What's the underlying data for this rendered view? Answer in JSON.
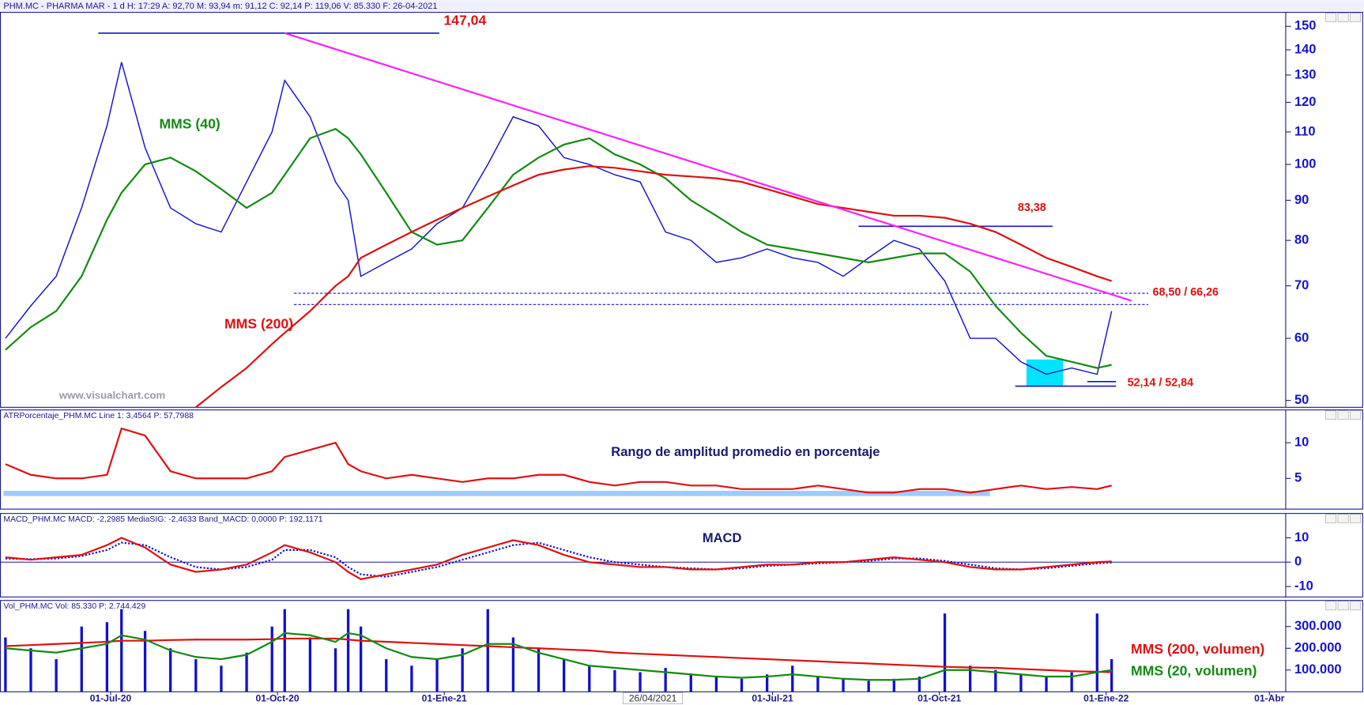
{
  "chart_data": {
    "type": "line",
    "title": "PHM.MC - PHARMA MAR -  1 d  H: 17:29  A: 92,70  M: 93,94  m: 91,12  C: 92,14  P: 119,06  V: 85.330  F: 26-04-2021",
    "watermark": "www.visualchart.com",
    "cursor": {
      "x": "2021-04-26",
      "label": "26/04/2021"
    },
    "xlim": [
      "2020-05-01",
      "2022-04-10"
    ],
    "xticks": [
      {
        "value": "2020-07-01",
        "label": "01-Jul-20"
      },
      {
        "value": "2020-10-01",
        "label": "01-Oct-20"
      },
      {
        "value": "2021-01-01",
        "label": "01-Ene-21"
      },
      {
        "value": "2021-07-01",
        "label": "01-Jul-21"
      },
      {
        "value": "2021-10-01",
        "label": "01-Oct-21"
      },
      {
        "value": "2022-01-01",
        "label": "01-Ene-22"
      },
      {
        "value": "2022-04-01",
        "label": "01-Abr"
      }
    ],
    "x": [
      "2020-05-04",
      "2020-05-18",
      "2020-06-01",
      "2020-06-15",
      "2020-06-29",
      "2020-07-07",
      "2020-07-20",
      "2020-08-03",
      "2020-08-17",
      "2020-08-31",
      "2020-09-14",
      "2020-09-28",
      "2020-10-05",
      "2020-10-19",
      "2020-11-02",
      "2020-11-09",
      "2020-11-16",
      "2020-11-30",
      "2020-12-14",
      "2020-12-28",
      "2021-01-11",
      "2021-01-25",
      "2021-02-08",
      "2021-02-22",
      "2021-03-08",
      "2021-03-22",
      "2021-04-05",
      "2021-04-19",
      "2021-05-03",
      "2021-05-17",
      "2021-05-31",
      "2021-06-14",
      "2021-06-28",
      "2021-07-12",
      "2021-07-26",
      "2021-08-09",
      "2021-08-23",
      "2021-09-06",
      "2021-09-20",
      "2021-10-04",
      "2021-10-18",
      "2021-11-01",
      "2021-11-15",
      "2021-11-29",
      "2021-12-13",
      "2021-12-27",
      "2022-01-04"
    ],
    "panels": [
      {
        "log": true,
        "ylim": [
          49,
          156.3
        ],
        "yticks": [
          50,
          60,
          70,
          80,
          90,
          100,
          110,
          120,
          130,
          140,
          150
        ],
        "series": [
          {
            "type": "line",
            "color": "#1010d0",
            "values": [
              60,
              66,
              72,
              88,
              112,
              135,
              105,
              88,
              84,
              82,
              95,
              110,
              128,
              115,
              95,
              90,
              72,
              75,
              78,
              84,
              88,
              100,
              115,
              112,
              102,
              100,
              97,
              95,
              82,
              80,
              75,
              76,
              78,
              76,
              75,
              72,
              76,
              80,
              78,
              71,
              60,
              60,
              56,
              54,
              55,
              54,
              65
            ]
          },
          {
            "type": "line",
            "name": "MMS (40)",
            "color": "#138a13",
            "values": [
              58,
              62,
              65,
              72,
              85,
              92,
              100,
              102,
              98,
              93,
              88,
              92,
              97,
              108,
              111,
              108,
              103,
              92,
              82,
              79,
              80,
              88,
              97,
              102,
              106,
              108,
              103,
              100,
              96,
              90,
              86,
              82,
              79,
              78,
              77,
              76,
              75,
              76,
              77,
              77,
              73,
              66,
              61,
              57,
              56,
              55,
              55.5
            ]
          },
          {
            "type": "line",
            "name": "MMS (200)",
            "color": "#e01010",
            "values": [
              null,
              null,
              null,
              null,
              null,
              null,
              null,
              null,
              49,
              52,
              55,
              59,
              61,
              65,
              70,
              72,
              76,
              79,
              82,
              85,
              88,
              91,
              94,
              97,
              98.5,
              99.5,
              99,
              98,
              97,
              96.5,
              96,
              95,
              93,
              91,
              89,
              88,
              87,
              86,
              86,
              85.5,
              84,
              82,
              79,
              76,
              74,
              72,
              71
            ]
          }
        ]
      },
      {
        "title": "ATRPorcentaje_PHM.MC  Line 1: 3,4564  P: 57,7988",
        "label": "Rango de amplitud promedio en porcentaje",
        "ylim": [
          0.7,
          14.6
        ],
        "yticks": [
          5,
          10
        ],
        "series": [
          {
            "type": "line",
            "color": "#e01010",
            "values": [
              7,
              5.5,
              5,
              5,
              5.5,
              12,
              11,
              6,
              5,
              5,
              5,
              6,
              8,
              9,
              10,
              7,
              6,
              5,
              5.5,
              5,
              4.5,
              5,
              5,
              5.5,
              5.5,
              4.5,
              4,
              4.5,
              4.5,
              4,
              4,
              3.5,
              3.5,
              3.5,
              4,
              3.5,
              3,
              3,
              3.5,
              3.5,
              3,
              3.5,
              4,
              3.5,
              3.8,
              3.5,
              4
            ]
          }
        ]
      },
      {
        "title": "MACD_PHM.MC  MACD: -2,2985  MediaSIG: -2,4633  Band_MACD: 0,0000  P: 192,1171",
        "label": "MACD",
        "ylim": [
          -14.3,
          20
        ],
        "yticks": [
          -10,
          0,
          10
        ],
        "series": [
          {
            "type": "line",
            "color": "#1010d0",
            "dashed": true,
            "values": [
              1.5,
              1.2,
              1.5,
              2.5,
              5,
              8,
              7,
              2,
              -2,
              -3,
              -2,
              1,
              5,
              5,
              2,
              -2,
              -5,
              -6,
              -4,
              -2,
              1,
              4,
              7,
              8,
              5,
              2,
              0,
              -1,
              -2,
              -2.5,
              -3,
              -2.5,
              -1.5,
              -1,
              -0.5,
              0,
              0.5,
              1.5,
              1.5,
              0.5,
              -1,
              -2.5,
              -3,
              -2.5,
              -1.5,
              -0.5,
              -0.2
            ]
          },
          {
            "type": "line",
            "color": "#e01010",
            "values": [
              2,
              1,
              2,
              3,
              7,
              10,
              6,
              -1,
              -4,
              -3,
              -1,
              4,
              7,
              4,
              0,
              -4,
              -7,
              -5,
              -3,
              -1,
              3,
              6,
              9,
              7,
              3,
              0,
              -1,
              -2,
              -2,
              -3,
              -3,
              -2,
              -1,
              -1,
              0,
              0,
              1,
              2,
              1,
              0,
              -2,
              -3,
              -3,
              -2,
              -1,
              0,
              0.3
            ]
          }
        ]
      },
      {
        "title": "Vol_PHM.MC  Vol: 85.330  P: 2.744.429",
        "ylim": [
          0,
          420000
        ],
        "yticks": [
          {
            "value": 100000,
            "label": "100.000"
          },
          {
            "value": 200000,
            "label": "200.000"
          },
          {
            "value": 300000,
            "label": "300.000"
          }
        ],
        "series": [
          {
            "type": "bar",
            "color": "#1010d0",
            "values": [
              250000,
              200000,
              150000,
              300000,
              320000,
              380000,
              280000,
              200000,
              150000,
              120000,
              180000,
              300000,
              380000,
              250000,
              200000,
              380000,
              300000,
              150000,
              120000,
              150000,
              200000,
              380000,
              250000,
              200000,
              150000,
              120000,
              100000,
              90000,
              110000,
              80000,
              70000,
              60000,
              80000,
              120000,
              70000,
              60000,
              50000,
              60000,
              70000,
              360000,
              120000,
              100000,
              80000,
              70000,
              90000,
              360000,
              150000
            ]
          },
          {
            "type": "line",
            "name": "MMS (200, volumen)",
            "color": "#e01010",
            "values": [
              210000,
              215000,
              220000,
              225000,
              230000,
              235000,
              235000,
              238000,
              240000,
              240000,
              240000,
              242000,
              245000,
              245000,
              245000,
              240000,
              235000,
              230000,
              225000,
              220000,
              215000,
              210000,
              205000,
              200000,
              195000,
              190000,
              180000,
              175000,
              170000,
              165000,
              160000,
              155000,
              150000,
              145000,
              140000,
              135000,
              130000,
              125000,
              120000,
              115000,
              112000,
              110000,
              105000,
              100000,
              95000,
              92000,
              90000
            ]
          },
          {
            "type": "line",
            "name": "MMS (20, volumen)",
            "color": "#138a13",
            "values": [
              200000,
              190000,
              180000,
              200000,
              220000,
              260000,
              240000,
              190000,
              160000,
              150000,
              170000,
              230000,
              270000,
              260000,
              230000,
              270000,
              260000,
              200000,
              160000,
              150000,
              170000,
              220000,
              220000,
              180000,
              150000,
              120000,
              110000,
              100000,
              90000,
              80000,
              70000,
              65000,
              70000,
              80000,
              70000,
              60000,
              55000,
              55000,
              60000,
              100000,
              100000,
              90000,
              80000,
              70000,
              70000,
              90000,
              100000
            ]
          }
        ]
      }
    ],
    "trendline": {
      "x": [
        "2020-10-05",
        "2022-01-15"
      ],
      "values": [
        147.04,
        67
      ],
      "color": "#ff20ff"
    },
    "annotations": [
      {
        "label": "147,04",
        "levels": [
          147.04
        ]
      },
      {
        "label": "83,38",
        "levels": [
          83.38
        ]
      },
      {
        "label": "68,50 / 66,26",
        "levels": [
          68.5,
          66.26
        ]
      },
      {
        "label": "52,14 / 52,84",
        "levels": [
          52.14,
          52.84
        ]
      }
    ]
  }
}
